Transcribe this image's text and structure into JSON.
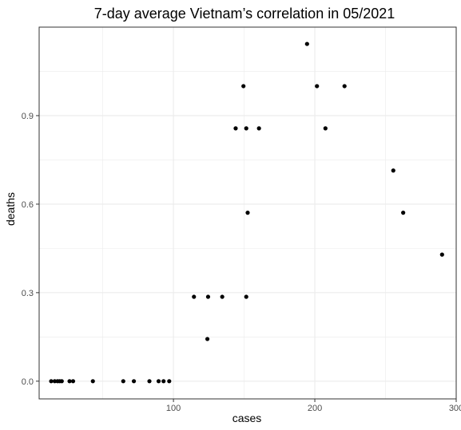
{
  "chart_data": {
    "type": "scatter",
    "title": "7-day average Vietnam’s correlation in 05/2021",
    "xlabel": "cases",
    "ylabel": "deaths",
    "xlim": [
      5,
      300
    ],
    "ylim": [
      -0.06,
      1.2
    ],
    "x_ticks": [
      100,
      200,
      300
    ],
    "y_ticks": [
      0.0,
      0.3,
      0.6,
      0.9
    ],
    "x_tick_labels": [
      "100",
      "200",
      "300"
    ],
    "y_tick_labels": [
      "0.0",
      "0.3",
      "0.6",
      "0.9"
    ],
    "x_minor_gridlines": [
      50,
      150,
      250
    ],
    "y_minor_gridlines": [
      0.15,
      0.45,
      0.75,
      1.05
    ],
    "grid": true,
    "legend": "none",
    "point_color": "#000000",
    "grid_color": "#ebebeb",
    "panel_border_color": "#333333",
    "series": [
      {
        "points": [
          {
            "x": 13.5,
            "y": 0.0
          },
          {
            "x": 16.0,
            "y": 0.0
          },
          {
            "x": 18.0,
            "y": 0.0
          },
          {
            "x": 19.5,
            "y": 0.0
          },
          {
            "x": 21.0,
            "y": 0.0
          },
          {
            "x": 26.5,
            "y": 0.0
          },
          {
            "x": 29.0,
            "y": 0.0
          },
          {
            "x": 43.0,
            "y": 0.0
          },
          {
            "x": 64.5,
            "y": 0.0
          },
          {
            "x": 72.0,
            "y": 0.0
          },
          {
            "x": 83.0,
            "y": 0.0
          },
          {
            "x": 89.5,
            "y": 0.0
          },
          {
            "x": 93.0,
            "y": 0.0
          },
          {
            "x": 97.0,
            "y": 0.0
          },
          {
            "x": 114.5,
            "y": 0.286
          },
          {
            "x": 124.0,
            "y": 0.143
          },
          {
            "x": 124.5,
            "y": 0.286
          },
          {
            "x": 134.5,
            "y": 0.286
          },
          {
            "x": 144.0,
            "y": 0.857
          },
          {
            "x": 149.5,
            "y": 1.0
          },
          {
            "x": 151.5,
            "y": 0.286
          },
          {
            "x": 151.5,
            "y": 0.857
          },
          {
            "x": 152.5,
            "y": 0.571
          },
          {
            "x": 160.5,
            "y": 0.857
          },
          {
            "x": 194.5,
            "y": 1.143
          },
          {
            "x": 201.5,
            "y": 1.0
          },
          {
            "x": 207.5,
            "y": 0.857
          },
          {
            "x": 221.0,
            "y": 1.0
          },
          {
            "x": 255.5,
            "y": 0.714
          },
          {
            "x": 262.5,
            "y": 0.571
          },
          {
            "x": 290.0,
            "y": 0.429
          }
        ]
      }
    ]
  }
}
